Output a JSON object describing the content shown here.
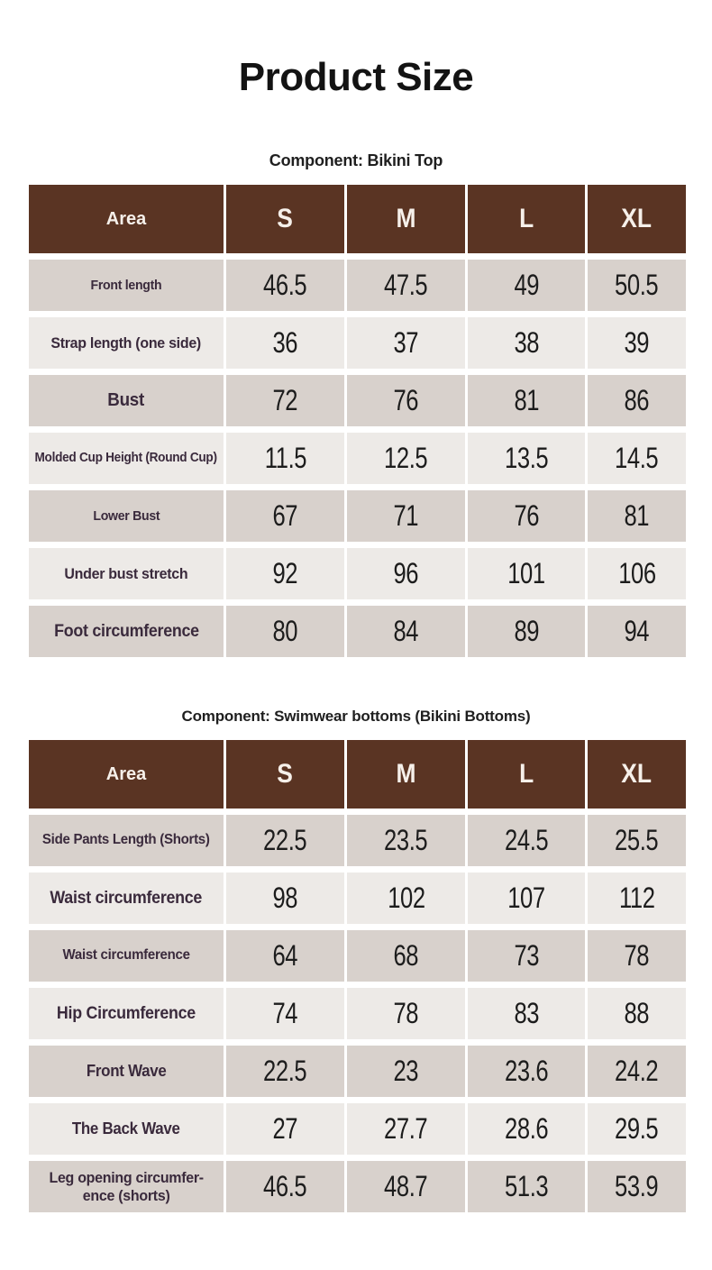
{
  "page": {
    "title": "Product Size"
  },
  "colors": {
    "header_bg": "#5a3423",
    "header_text": "#f6f0ea",
    "row_dark_bg": "#d8d1cc",
    "row_light_bg": "#edeae7",
    "label_text": "#3a2a3c",
    "value_text": "#1c1c1c"
  },
  "tables": [
    {
      "heading": "Component: Bikini Top",
      "area_header": "Area",
      "size_headers": [
        "S",
        "M",
        "L",
        "XL"
      ],
      "rows": [
        {
          "label": "Front length",
          "values": [
            "46.5",
            "47.5",
            "49",
            "50.5"
          ]
        },
        {
          "label": "Strap length (one side)",
          "values": [
            "36",
            "37",
            "38",
            "39"
          ]
        },
        {
          "label": "Bust",
          "values": [
            "72",
            "76",
            "81",
            "86"
          ]
        },
        {
          "label": "Molded Cup Height (Round Cup)",
          "values": [
            "11.5",
            "12.5",
            "13.5",
            "14.5"
          ]
        },
        {
          "label": "Lower Bust",
          "values": [
            "67",
            "71",
            "76",
            "81"
          ]
        },
        {
          "label": "Under bust stretch",
          "values": [
            "92",
            "96",
            "101",
            "106"
          ]
        },
        {
          "label": "Foot circumference",
          "values": [
            "80",
            "84",
            "89",
            "94"
          ]
        }
      ]
    },
    {
      "heading": "Component: Swimwear bottoms (Bikini Bottoms)",
      "area_header": "Area",
      "size_headers": [
        "S",
        "M",
        "L",
        "XL"
      ],
      "rows": [
        {
          "label": "Side Pants Length (Shorts)",
          "values": [
            "22.5",
            "23.5",
            "24.5",
            "25.5"
          ]
        },
        {
          "label": "Waist circumference",
          "values": [
            "98",
            "102",
            "107",
            "112"
          ]
        },
        {
          "label": "Waist circumference",
          "values": [
            "64",
            "68",
            "73",
            "78"
          ]
        },
        {
          "label": "Hip Circumference",
          "values": [
            "74",
            "78",
            "83",
            "88"
          ]
        },
        {
          "label": "Front Wave",
          "values": [
            "22.5",
            "23",
            "23.6",
            "24.2"
          ]
        },
        {
          "label": "The Back Wave",
          "values": [
            "27",
            "27.7",
            "28.6",
            "29.5"
          ]
        },
        {
          "label": "Leg opening circumfer-\nence (shorts)",
          "values": [
            "46.5",
            "48.7",
            "51.3",
            "53.9"
          ]
        }
      ]
    }
  ]
}
